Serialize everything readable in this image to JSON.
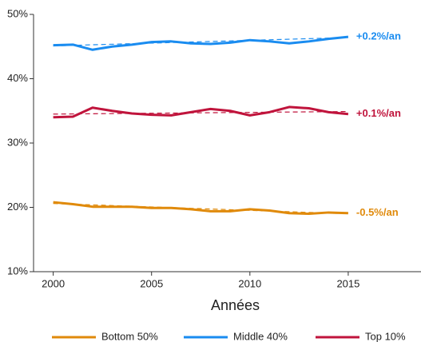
{
  "chart_data": {
    "type": "line",
    "x_label": "Années",
    "x": [
      2000,
      2001,
      2002,
      2003,
      2004,
      2005,
      2006,
      2007,
      2008,
      2009,
      2010,
      2011,
      2012,
      2013,
      2014,
      2015
    ],
    "xlim": [
      1999,
      2018.7
    ],
    "xticks": [
      2000,
      2005,
      2010,
      2015
    ],
    "ylim": [
      10,
      50
    ],
    "yticks": [
      {
        "value": 10,
        "label": "10%"
      },
      {
        "value": 20,
        "label": "20%"
      },
      {
        "value": 30,
        "label": "30%"
      },
      {
        "value": 40,
        "label": "40%"
      },
      {
        "value": 50,
        "label": "50%"
      }
    ],
    "series": [
      {
        "name": "Bottom 50%",
        "color": "#e08a0b",
        "annotation": "-0.5%/an",
        "values": [
          20.8,
          20.5,
          20.1,
          20.1,
          20.1,
          19.9,
          19.9,
          19.7,
          19.4,
          19.4,
          19.7,
          19.5,
          19.1,
          19.0,
          19.2,
          19.1
        ],
        "trend": [
          20.6,
          19.0
        ]
      },
      {
        "name": "Middle 40%",
        "color": "#1a8cf0",
        "annotation": "+0.2%/an",
        "values": [
          45.2,
          45.3,
          44.5,
          45.0,
          45.3,
          45.7,
          45.8,
          45.5,
          45.4,
          45.6,
          46.0,
          45.8,
          45.5,
          45.8,
          46.2,
          46.5
        ],
        "trend": [
          45.1,
          46.4
        ]
      },
      {
        "name": "Top 10%",
        "color": "#c0143c",
        "annotation": "+0.1%/an",
        "values": [
          34.0,
          34.1,
          35.5,
          35.0,
          34.6,
          34.4,
          34.3,
          34.8,
          35.3,
          35.0,
          34.3,
          34.8,
          35.6,
          35.4,
          34.8,
          34.5
        ],
        "trend": [
          34.5,
          34.9
        ]
      }
    ]
  }
}
